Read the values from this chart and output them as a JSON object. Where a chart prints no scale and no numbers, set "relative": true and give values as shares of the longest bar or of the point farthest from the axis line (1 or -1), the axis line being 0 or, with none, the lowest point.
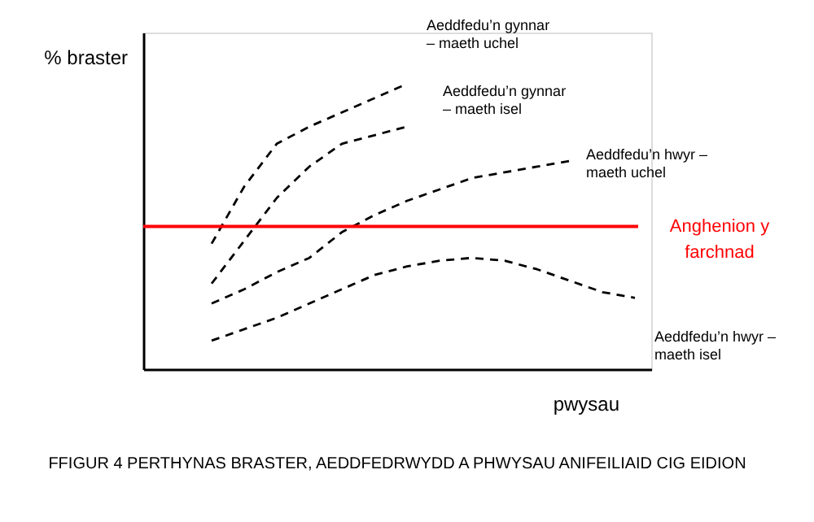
{
  "chart_data": {
    "type": "line",
    "title": "FFIGUR 4 PERTHYNAS BRASTER, AEDDFEDRWYDD A PHWYSAU ANIFEILIAID CIG EIDION",
    "xlabel": "pwysau",
    "ylabel": "%  braster",
    "relative": true,
    "line_style": "dashed",
    "marker": "none",
    "categories": [
      null,
      null,
      null,
      null,
      null,
      null,
      null,
      null,
      null,
      null,
      null,
      null,
      null,
      null
    ],
    "series": [
      {
        "name": "Aeddfedu’n  gynnar\n– maeth uchel",
        "color": "#000000",
        "values": [
          0.44,
          0.64,
          0.79,
          0.85,
          0.9,
          0.95,
          1.0,
          null,
          null,
          null,
          null,
          null,
          null,
          null
        ]
      },
      {
        "name": "Aeddfedu’n  gynnar\n– maeth isel",
        "color": "#000000",
        "values": [
          0.3,
          0.45,
          0.6,
          0.71,
          0.79,
          0.82,
          0.85,
          null,
          null,
          null,
          null,
          null,
          null,
          null
        ]
      },
      {
        "name": "Aeddfedu’n hwyr –\nmaeth uchel",
        "color": "#000000",
        "values": [
          0.23,
          0.28,
          0.34,
          0.39,
          0.48,
          0.54,
          0.59,
          0.63,
          0.67,
          0.69,
          0.71,
          0.73,
          null,
          null
        ]
      },
      {
        "name": "Aeddfedu’n hwyr –\nmaeth isel",
        "color": "#000000",
        "values": [
          0.1,
          0.14,
          0.18,
          0.23,
          0.28,
          0.33,
          0.36,
          0.38,
          0.39,
          0.38,
          0.35,
          0.31,
          0.27,
          0.25
        ]
      }
    ],
    "ref_lines": [
      {
        "axis": "y",
        "value": 0.5,
        "label": "Anghenion y\nfarchnad",
        "color": "#ff0000",
        "line_style": "solid"
      }
    ]
  }
}
